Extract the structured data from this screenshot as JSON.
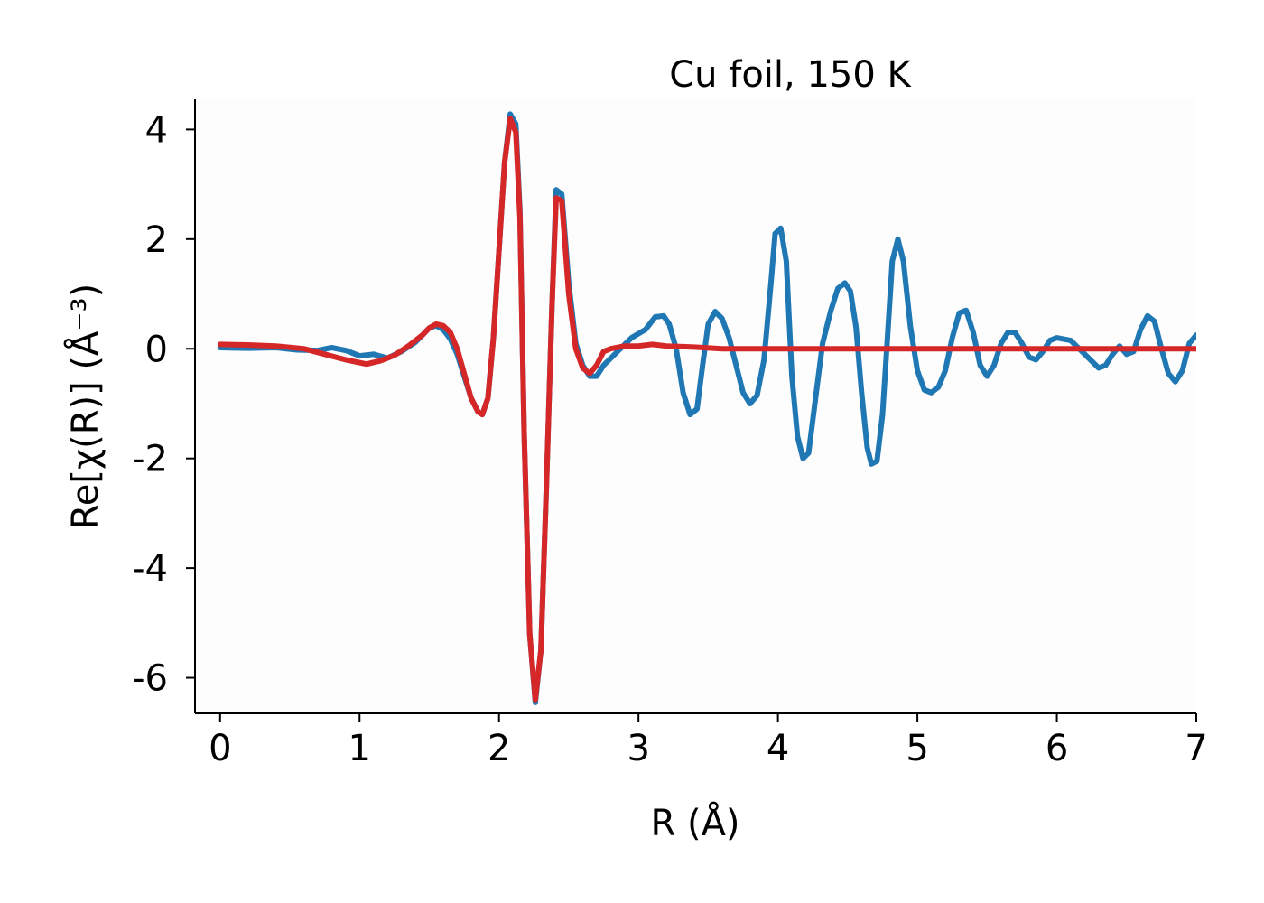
{
  "chart_data": {
    "type": "line",
    "title": "Cu foil, 150 K",
    "xlabel": "R (Å)",
    "ylabel": "Re[χ(R)] (Å⁻³)",
    "xlim": [
      -0.18,
      7.0
    ],
    "ylim": [
      -6.65,
      4.55
    ],
    "xticks": [
      0,
      1,
      2,
      3,
      4,
      5,
      6,
      7
    ],
    "xtick_labels": [
      "0",
      "1",
      "2",
      "3",
      "4",
      "5",
      "6",
      "7"
    ],
    "yticks": [
      4,
      2,
      0,
      -2,
      -4,
      -6
    ],
    "ytick_labels": [
      "4",
      "2",
      "0",
      "-2",
      "-4",
      "-6"
    ],
    "grid": false,
    "legend": "none",
    "series": [
      {
        "color": "#1f77b4",
        "points": [
          [
            0,
            0.02
          ],
          [
            0.2,
            0.01
          ],
          [
            0.4,
            0.02
          ],
          [
            0.55,
            -0.02
          ],
          [
            0.7,
            -0.03
          ],
          [
            0.8,
            0.02
          ],
          [
            0.9,
            -0.03
          ],
          [
            1.0,
            -0.13
          ],
          [
            1.1,
            -0.1
          ],
          [
            1.2,
            -0.17
          ],
          [
            1.3,
            -0.05
          ],
          [
            1.4,
            0.12
          ],
          [
            1.45,
            0.25
          ],
          [
            1.5,
            0.38
          ],
          [
            1.55,
            0.42
          ],
          [
            1.6,
            0.35
          ],
          [
            1.65,
            0.18
          ],
          [
            1.7,
            -0.1
          ],
          [
            1.75,
            -0.5
          ],
          [
            1.8,
            -0.9
          ],
          [
            1.85,
            -1.15
          ],
          [
            1.88,
            -1.2
          ],
          [
            1.92,
            -0.9
          ],
          [
            1.96,
            0.2
          ],
          [
            2.0,
            1.8
          ],
          [
            2.04,
            3.4
          ],
          [
            2.08,
            4.28
          ],
          [
            2.12,
            4.1
          ],
          [
            2.15,
            2.5
          ],
          [
            2.18,
            -1.5
          ],
          [
            2.22,
            -5.2
          ],
          [
            2.26,
            -6.45
          ],
          [
            2.3,
            -5.5
          ],
          [
            2.34,
            -2.5
          ],
          [
            2.38,
            0.8
          ],
          [
            2.41,
            2.9
          ],
          [
            2.45,
            2.82
          ],
          [
            2.5,
            1.2
          ],
          [
            2.55,
            0.1
          ],
          [
            2.6,
            -0.3
          ],
          [
            2.65,
            -0.5
          ],
          [
            2.7,
            -0.5
          ],
          [
            2.75,
            -0.3
          ],
          [
            2.85,
            -0.05
          ],
          [
            2.95,
            0.2
          ],
          [
            3.05,
            0.35
          ],
          [
            3.12,
            0.58
          ],
          [
            3.18,
            0.6
          ],
          [
            3.22,
            0.45
          ],
          [
            3.27,
            0.0
          ],
          [
            3.32,
            -0.8
          ],
          [
            3.37,
            -1.2
          ],
          [
            3.42,
            -1.1
          ],
          [
            3.46,
            -0.3
          ],
          [
            3.5,
            0.45
          ],
          [
            3.55,
            0.68
          ],
          [
            3.6,
            0.55
          ],
          [
            3.65,
            0.2
          ],
          [
            3.7,
            -0.3
          ],
          [
            3.75,
            -0.8
          ],
          [
            3.8,
            -1.0
          ],
          [
            3.85,
            -0.85
          ],
          [
            3.9,
            -0.2
          ],
          [
            3.95,
            1.2
          ],
          [
            3.98,
            2.1
          ],
          [
            4.02,
            2.2
          ],
          [
            4.06,
            1.6
          ],
          [
            4.1,
            -0.5
          ],
          [
            4.14,
            -1.6
          ],
          [
            4.18,
            -2.0
          ],
          [
            4.22,
            -1.9
          ],
          [
            4.27,
            -0.9
          ],
          [
            4.32,
            0.1
          ],
          [
            4.38,
            0.7
          ],
          [
            4.43,
            1.1
          ],
          [
            4.48,
            1.2
          ],
          [
            4.52,
            1.05
          ],
          [
            4.56,
            0.4
          ],
          [
            4.6,
            -0.8
          ],
          [
            4.64,
            -1.8
          ],
          [
            4.67,
            -2.1
          ],
          [
            4.71,
            -2.05
          ],
          [
            4.75,
            -1.2
          ],
          [
            4.79,
            0.4
          ],
          [
            4.82,
            1.6
          ],
          [
            4.86,
            2.0
          ],
          [
            4.9,
            1.6
          ],
          [
            4.95,
            0.4
          ],
          [
            5.0,
            -0.4
          ],
          [
            5.05,
            -0.75
          ],
          [
            5.1,
            -0.8
          ],
          [
            5.15,
            -0.7
          ],
          [
            5.2,
            -0.4
          ],
          [
            5.25,
            0.2
          ],
          [
            5.3,
            0.65
          ],
          [
            5.35,
            0.7
          ],
          [
            5.4,
            0.3
          ],
          [
            5.45,
            -0.3
          ],
          [
            5.5,
            -0.5
          ],
          [
            5.55,
            -0.3
          ],
          [
            5.6,
            0.1
          ],
          [
            5.65,
            0.3
          ],
          [
            5.7,
            0.3
          ],
          [
            5.75,
            0.1
          ],
          [
            5.8,
            -0.15
          ],
          [
            5.85,
            -0.2
          ],
          [
            5.9,
            -0.05
          ],
          [
            5.95,
            0.15
          ],
          [
            6.0,
            0.2
          ],
          [
            6.1,
            0.15
          ],
          [
            6.2,
            -0.1
          ],
          [
            6.3,
            -0.35
          ],
          [
            6.35,
            -0.3
          ],
          [
            6.4,
            -0.1
          ],
          [
            6.45,
            0.05
          ],
          [
            6.5,
            -0.1
          ],
          [
            6.55,
            -0.05
          ],
          [
            6.6,
            0.35
          ],
          [
            6.65,
            0.6
          ],
          [
            6.7,
            0.5
          ],
          [
            6.75,
            0.0
          ],
          [
            6.8,
            -0.45
          ],
          [
            6.85,
            -0.6
          ],
          [
            6.9,
            -0.4
          ],
          [
            6.95,
            0.1
          ],
          [
            7.0,
            0.25
          ],
          [
            7.05,
            0.15
          ],
          [
            7.1,
            -0.35
          ]
        ]
      },
      {
        "color": "#d62728",
        "points": [
          [
            0,
            0.08
          ],
          [
            0.2,
            0.07
          ],
          [
            0.4,
            0.05
          ],
          [
            0.6,
            0.0
          ],
          [
            0.75,
            -0.1
          ],
          [
            0.9,
            -0.2
          ],
          [
            1.05,
            -0.28
          ],
          [
            1.15,
            -0.22
          ],
          [
            1.25,
            -0.12
          ],
          [
            1.35,
            0.05
          ],
          [
            1.45,
            0.25
          ],
          [
            1.5,
            0.38
          ],
          [
            1.55,
            0.45
          ],
          [
            1.6,
            0.42
          ],
          [
            1.65,
            0.3
          ],
          [
            1.7,
            0.0
          ],
          [
            1.75,
            -0.45
          ],
          [
            1.8,
            -0.9
          ],
          [
            1.85,
            -1.15
          ],
          [
            1.88,
            -1.2
          ],
          [
            1.92,
            -0.9
          ],
          [
            1.96,
            0.2
          ],
          [
            2.0,
            1.8
          ],
          [
            2.04,
            3.4
          ],
          [
            2.08,
            4.2
          ],
          [
            2.12,
            3.95
          ],
          [
            2.15,
            2.4
          ],
          [
            2.18,
            -1.5
          ],
          [
            2.22,
            -5.2
          ],
          [
            2.26,
            -6.4
          ],
          [
            2.3,
            -5.5
          ],
          [
            2.34,
            -2.5
          ],
          [
            2.38,
            0.8
          ],
          [
            2.41,
            2.75
          ],
          [
            2.45,
            2.7
          ],
          [
            2.5,
            1.0
          ],
          [
            2.55,
            0.0
          ],
          [
            2.6,
            -0.35
          ],
          [
            2.65,
            -0.45
          ],
          [
            2.7,
            -0.3
          ],
          [
            2.75,
            -0.05
          ],
          [
            2.8,
            0.0
          ],
          [
            2.9,
            0.05
          ],
          [
            3.0,
            0.05
          ],
          [
            3.1,
            0.08
          ],
          [
            3.2,
            0.05
          ],
          [
            3.4,
            0.03
          ],
          [
            3.6,
            0.0
          ],
          [
            4.0,
            0.0
          ],
          [
            4.5,
            0.0
          ],
          [
            5.0,
            0.0
          ],
          [
            5.5,
            0.0
          ],
          [
            6.0,
            0.0
          ],
          [
            6.5,
            0.0
          ],
          [
            7.0,
            0.0
          ],
          [
            7.1,
            0.0
          ]
        ]
      }
    ]
  }
}
